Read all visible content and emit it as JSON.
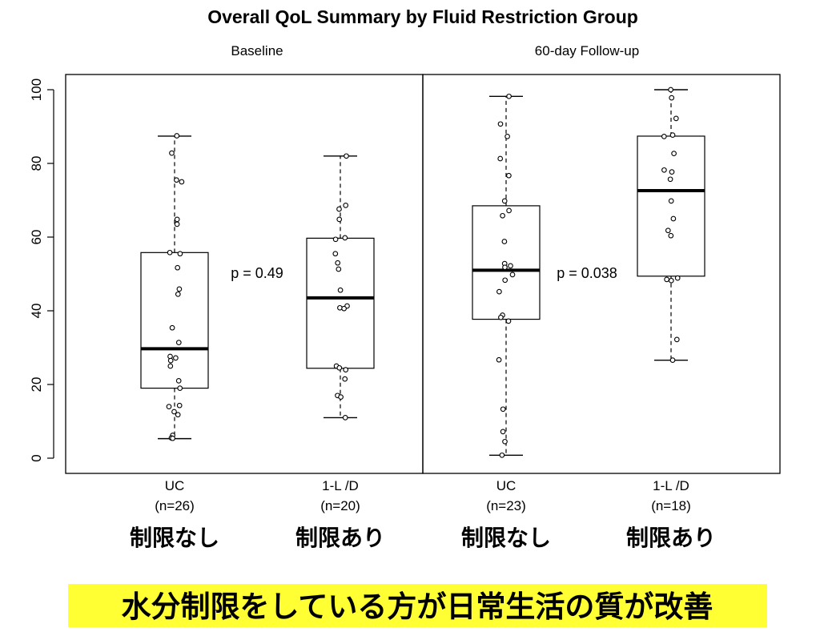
{
  "chart_data": {
    "type": "box",
    "title": "Overall QoL Summary by Fluid Restriction Group",
    "ylim": [
      0,
      100
    ],
    "yticks": [
      0,
      20,
      40,
      60,
      80,
      100
    ],
    "panels": [
      {
        "label": "Baseline",
        "p_value": "p = 0.49",
        "groups": [
          {
            "category": "UC",
            "n_label": "(n=26)",
            "jp_label": "制限なし",
            "stats": {
              "whisker_low": 5.3,
              "q1": 19.0,
              "median": 29.7,
              "q3": 55.8,
              "whisker_high": 87.4
            },
            "points": [
              87.5,
              82.8,
              75.5,
              75.0,
              64.8,
              63.5,
              55.8,
              55.5,
              51.7,
              45.9,
              44.5,
              35.4,
              31.4,
              27.6,
              27.2,
              26.5,
              25.0,
              21.0,
              19.0,
              14.3,
              14.0,
              12.6,
              11.8,
              6.2,
              5.5,
              5.4
            ]
          },
          {
            "category": "1-L /D",
            "n_label": "(n=20)",
            "jp_label": "制限あり",
            "stats": {
              "whisker_low": 11.0,
              "q1": 24.4,
              "median": 43.5,
              "q3": 59.7,
              "whisker_high": 82.0
            },
            "points": [
              82.0,
              68.6,
              67.6,
              64.8,
              59.8,
              59.4,
              55.5,
              53.0,
              51.3,
              45.6,
              41.3,
              40.8,
              40.6,
              25.0,
              24.5,
              24.0,
              21.5,
              17.0,
              16.6,
              11.0
            ]
          }
        ]
      },
      {
        "label": "60-day Follow-up",
        "p_value": "p = 0.038",
        "groups": [
          {
            "category": "UC",
            "n_label": "(n=23)",
            "jp_label": "制限なし",
            "stats": {
              "whisker_low": 0.8,
              "q1": 37.7,
              "median": 51.0,
              "q3": 68.5,
              "whisker_high": 98.2
            },
            "points": [
              98.2,
              90.7,
              87.3,
              81.3,
              76.7,
              69.8,
              67.2,
              65.8,
              58.8,
              52.8,
              51.8,
              49.8,
              48.3,
              45.2,
              38.8,
              38.2,
              37.2,
              26.7,
              13.3,
              7.2,
              4.5,
              0.8,
              52.2
            ]
          },
          {
            "category": "1-L /D",
            "n_label": "(n=18)",
            "jp_label": "制限あり",
            "stats": {
              "whisker_low": 26.6,
              "q1": 49.4,
              "median": 72.6,
              "q3": 87.4,
              "whisker_high": 100.0
            },
            "points": [
              100.0,
              97.8,
              92.2,
              87.7,
              82.7,
              78.2,
              77.7,
              75.7,
              69.8,
              65.0,
              61.8,
              60.4,
              48.9,
              48.5,
              48.2,
              32.2,
              26.6,
              87.3
            ]
          }
        ]
      }
    ]
  },
  "banner": {
    "text": "水分制限をしている方が日常生活の質が改善",
    "background": "#ffff33"
  }
}
